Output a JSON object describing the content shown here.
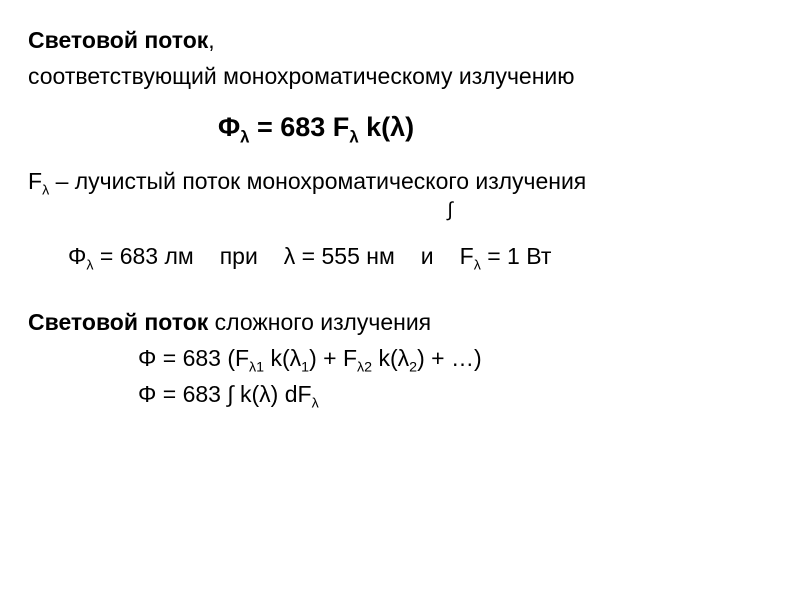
{
  "colors": {
    "background": "#ffffff",
    "text": "#000000"
  },
  "typography": {
    "body_fontsize": 23,
    "formula_fontsize": 27,
    "font_family": "Arial"
  },
  "header": {
    "title_bold": "Световой поток",
    "comma": ",",
    "subtitle": "соответствующий монохроматическому излучению"
  },
  "main_formula": {
    "text": "Φ",
    "sub": "λ",
    "eq": " = 683 F",
    "sub2": "λ",
    "tail": " k(λ)"
  },
  "def_line": {
    "f": "F",
    "sub": "λ",
    "rest": " – лучистый поток монохроматического излучения"
  },
  "integral_mark": "∫",
  "values": {
    "phi": "Φ",
    "sub1": "λ",
    "part1": " = 683 лм",
    "spacer1": " ",
    "pri": "при",
    "spacer2": " ",
    "lam": "λ",
    "lam_val": " = 555 нм",
    "spacer3": " ",
    "and": "и",
    "spacer4": " ",
    "f": "F",
    "sub2": "λ",
    "fval": " = 1 Вт"
  },
  "complex": {
    "title_bold": "Световой поток",
    "title_rest": " сложного излучения",
    "eq1": {
      "phi": "Φ = 683 (F",
      "s1": "λ1",
      "m1": " k(λ",
      "s1b": "1",
      "m2": ") + F",
      "s2": "λ2",
      "m3": " k(λ",
      "s2b": "2",
      "m4": ") + …)"
    },
    "eq2": {
      "phi": "Φ = 683 ∫ k(λ) dF",
      "sub": "λ"
    }
  }
}
